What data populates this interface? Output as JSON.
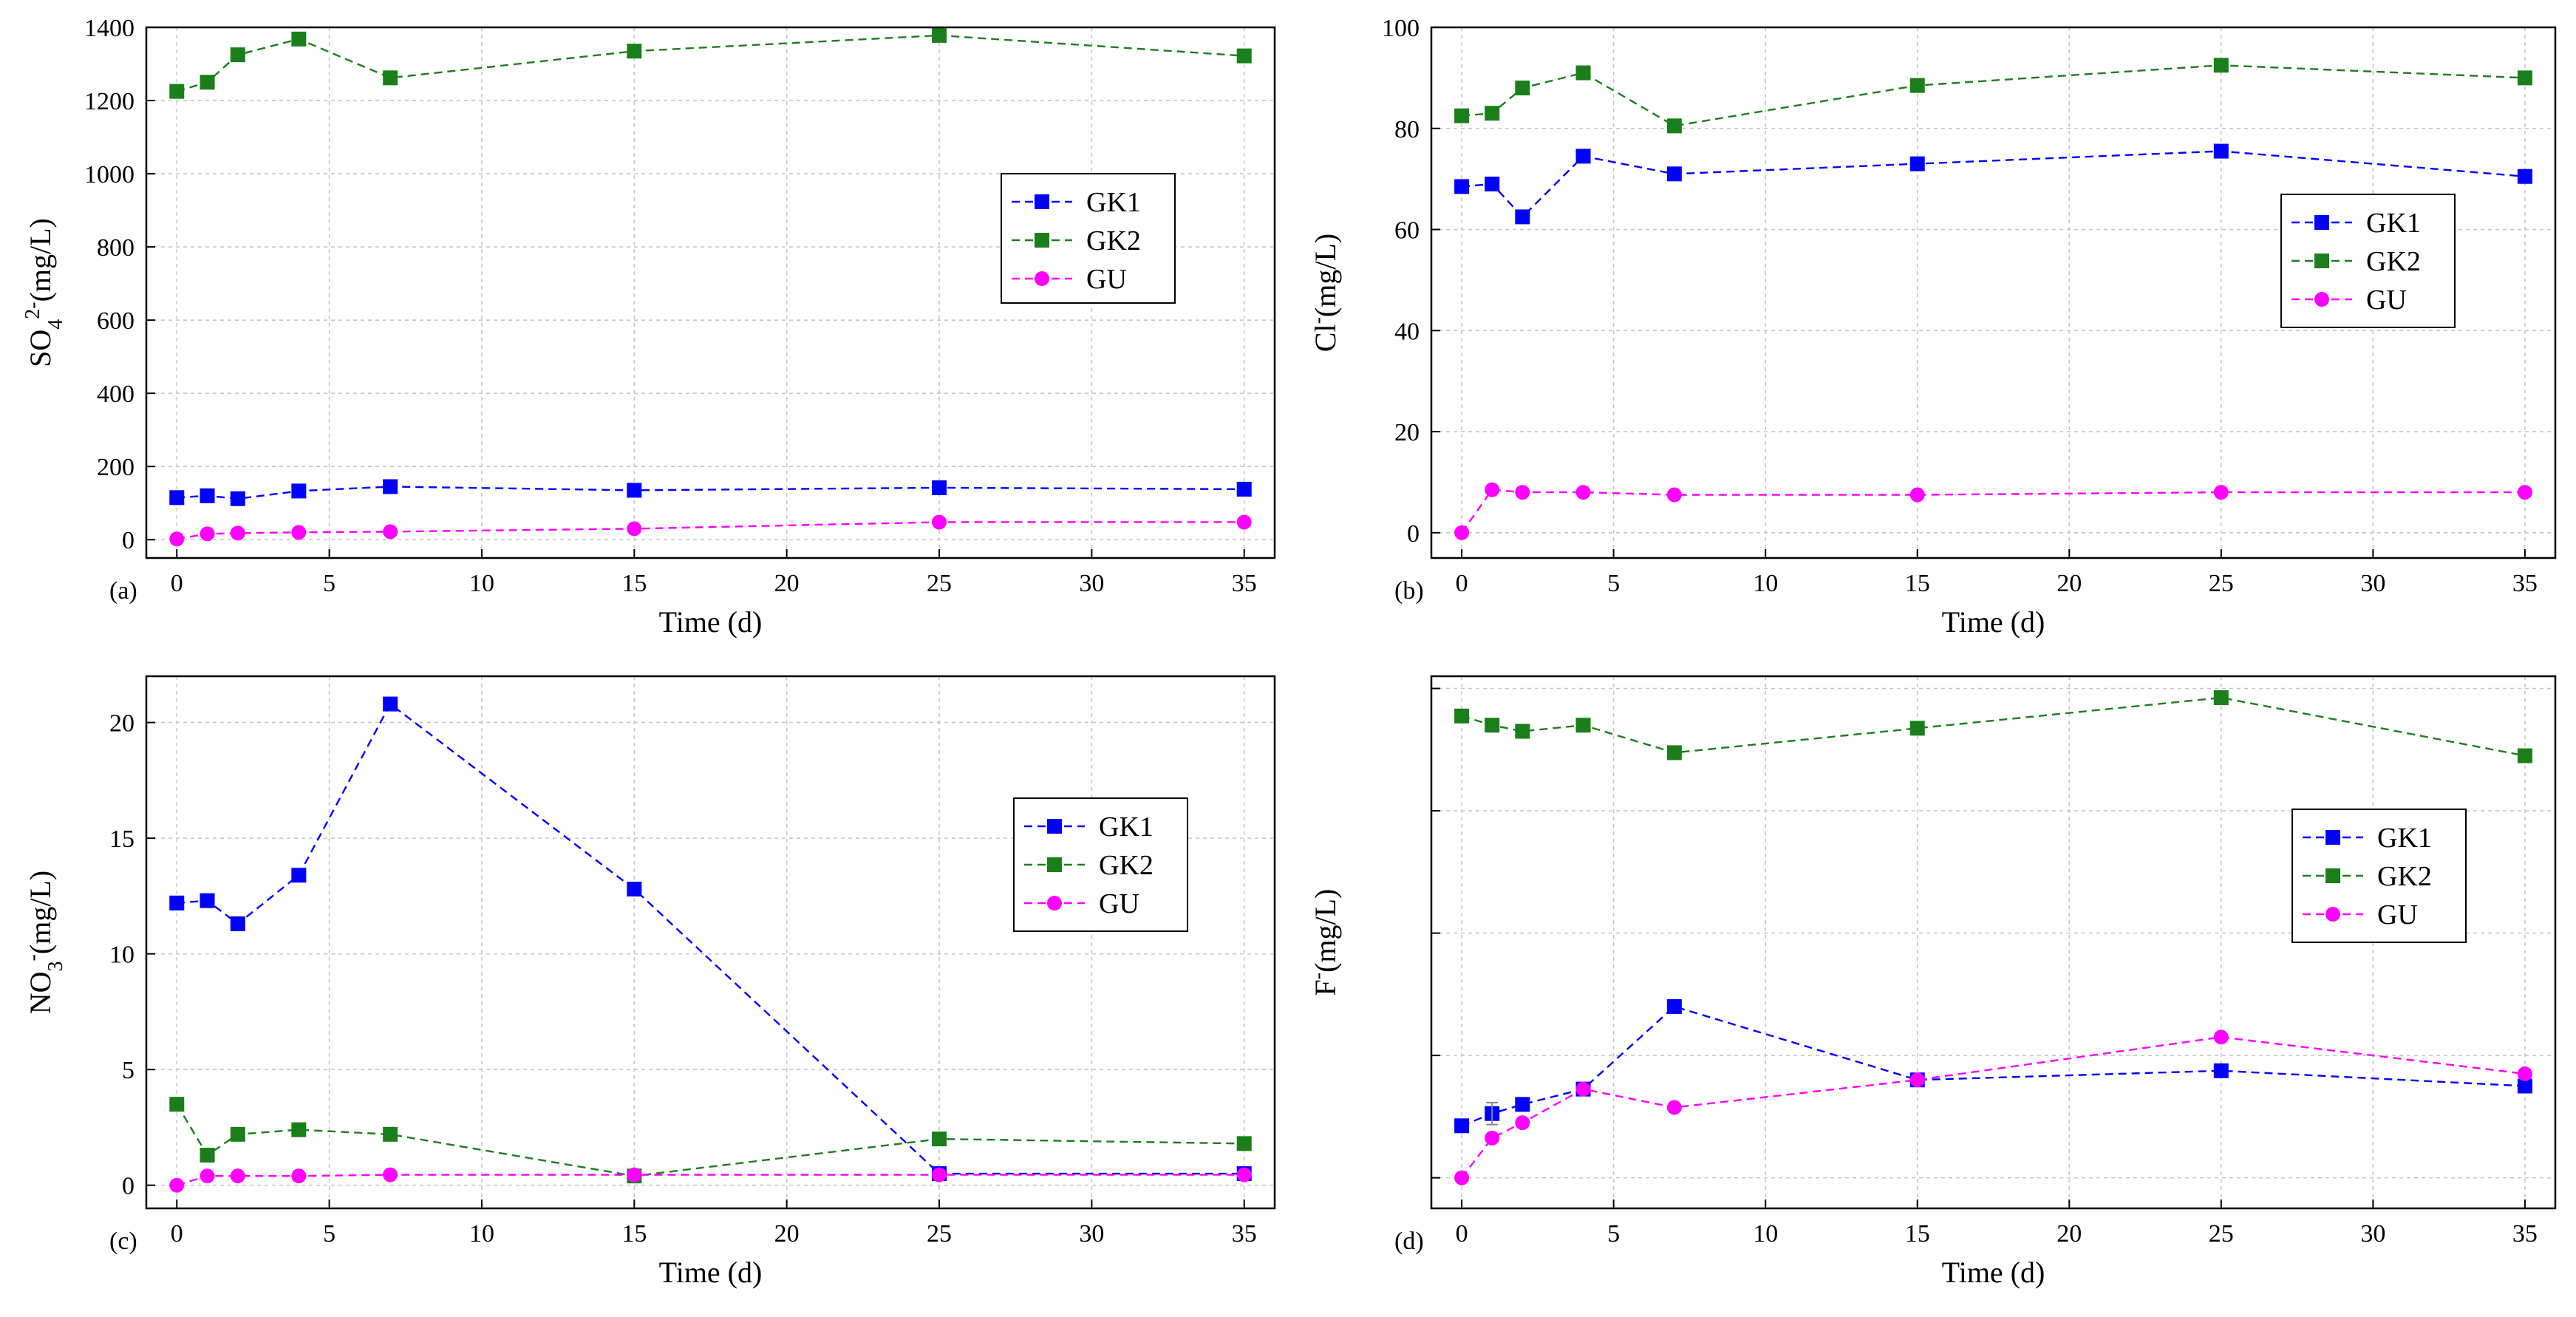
{
  "colors": {
    "GK1": "#0000ff",
    "GK2": "#1a7f1a",
    "GU": "#ff00ff"
  },
  "chart_data": [
    {
      "type": "line",
      "panel_label": "(a)",
      "xlabel": "Time (d)",
      "ylabel_parts": {
        "base": "SO",
        "sub": "4",
        "sup": "2-",
        "unit": "(mg/L)"
      },
      "xlim": [
        -1,
        36
      ],
      "ylim": [
        -50,
        1400
      ],
      "xticks": [
        0,
        5,
        10,
        15,
        20,
        25,
        30,
        35
      ],
      "yticks": [
        0,
        200,
        400,
        600,
        800,
        1000,
        1200,
        1400
      ],
      "grid": true,
      "legend_position": "middle-right",
      "x": [
        0,
        1,
        2,
        4,
        7,
        15,
        25,
        35
      ],
      "series": [
        {
          "name": "GK1",
          "marker": "square",
          "values": [
            115,
            120,
            112,
            133,
            145,
            135,
            142,
            138
          ]
        },
        {
          "name": "GK2",
          "marker": "square",
          "values": [
            1225,
            1250,
            1325,
            1368,
            1262,
            1335,
            1378,
            1322
          ]
        },
        {
          "name": "GU",
          "marker": "circle",
          "values": [
            2,
            16,
            18,
            20,
            22,
            30,
            48,
            48
          ]
        }
      ]
    },
    {
      "type": "line",
      "panel_label": "(b)",
      "xlabel": "Time (d)",
      "ylabel_parts": {
        "base": "Cl",
        "sub": "",
        "sup": "-",
        "unit": "(mg/L)"
      },
      "xlim": [
        -1,
        36
      ],
      "ylim": [
        -5,
        100
      ],
      "xticks": [
        0,
        5,
        10,
        15,
        20,
        25,
        30,
        35
      ],
      "yticks": [
        0,
        20,
        40,
        60,
        80,
        100
      ],
      "grid": true,
      "legend_position": "middle-right",
      "x": [
        0,
        1,
        2,
        4,
        7,
        15,
        25,
        35
      ],
      "series": [
        {
          "name": "GK1",
          "marker": "square",
          "values": [
            68.5,
            69,
            62.5,
            74.5,
            71,
            73,
            75.5,
            70.5
          ]
        },
        {
          "name": "GK2",
          "marker": "square",
          "values": [
            82.5,
            83,
            88,
            91,
            80.5,
            88.5,
            92.5,
            90
          ]
        },
        {
          "name": "GU",
          "marker": "circle",
          "values": [
            0,
            8.5,
            8,
            8,
            7.5,
            7.5,
            8,
            8
          ]
        }
      ]
    },
    {
      "type": "line",
      "panel_label": "(c)",
      "xlabel": "Time (d)",
      "ylabel_parts": {
        "base": "NO",
        "sub": "3",
        "sup": "-",
        "unit": "(mg/L)"
      },
      "xlim": [
        -1,
        36
      ],
      "ylim": [
        -1,
        22
      ],
      "xticks": [
        0,
        5,
        10,
        15,
        20,
        25,
        30,
        35
      ],
      "yticks": [
        0,
        5,
        10,
        15,
        20
      ],
      "grid": true,
      "legend_position": "middle-right",
      "x": [
        0,
        1,
        2,
        4,
        7,
        15,
        25,
        35
      ],
      "series": [
        {
          "name": "GK1",
          "marker": "square",
          "values": [
            12.2,
            12.3,
            11.3,
            13.4,
            20.8,
            12.8,
            0.5,
            0.5
          ]
        },
        {
          "name": "GK2",
          "marker": "square",
          "values": [
            3.5,
            1.3,
            2.2,
            2.4,
            2.2,
            0.4,
            2.0,
            1.8
          ]
        },
        {
          "name": "GU",
          "marker": "circle",
          "values": [
            0,
            0.4,
            0.4,
            0.4,
            0.45,
            0.45,
            0.45,
            0.45
          ]
        }
      ]
    },
    {
      "type": "line",
      "panel_label": "(d)",
      "xlabel": "Time (d)",
      "ylabel_parts": {
        "base": "F",
        "sub": "",
        "sup": "-",
        "unit": "(mg/L)"
      },
      "xlim": [
        -1,
        36
      ],
      "ylim": [
        -0.5,
        8.2
      ],
      "xticks": [
        0,
        5,
        10,
        15,
        20,
        25,
        30,
        35
      ],
      "yticks": [
        0,
        2,
        4,
        6,
        8
      ],
      "ytick_labels_shown": false,
      "grid": true,
      "legend_position": "middle-right",
      "x": [
        0,
        1,
        2,
        4,
        7,
        15,
        25,
        35
      ],
      "series": [
        {
          "name": "GK1",
          "marker": "square",
          "values": [
            0.85,
            1.05,
            1.2,
            1.45,
            2.8,
            1.6,
            1.75,
            1.5
          ]
        },
        {
          "name": "GK2",
          "marker": "square",
          "values": [
            7.55,
            7.4,
            7.3,
            7.4,
            6.95,
            7.35,
            7.85,
            6.9
          ]
        },
        {
          "name": "GU",
          "marker": "circle",
          "values": [
            0,
            0.65,
            0.9,
            1.45,
            1.15,
            1.6,
            2.3,
            1.7
          ]
        }
      ],
      "error_bars": {
        "series": "GK1",
        "x": 1,
        "delta": 0.18
      }
    }
  ]
}
